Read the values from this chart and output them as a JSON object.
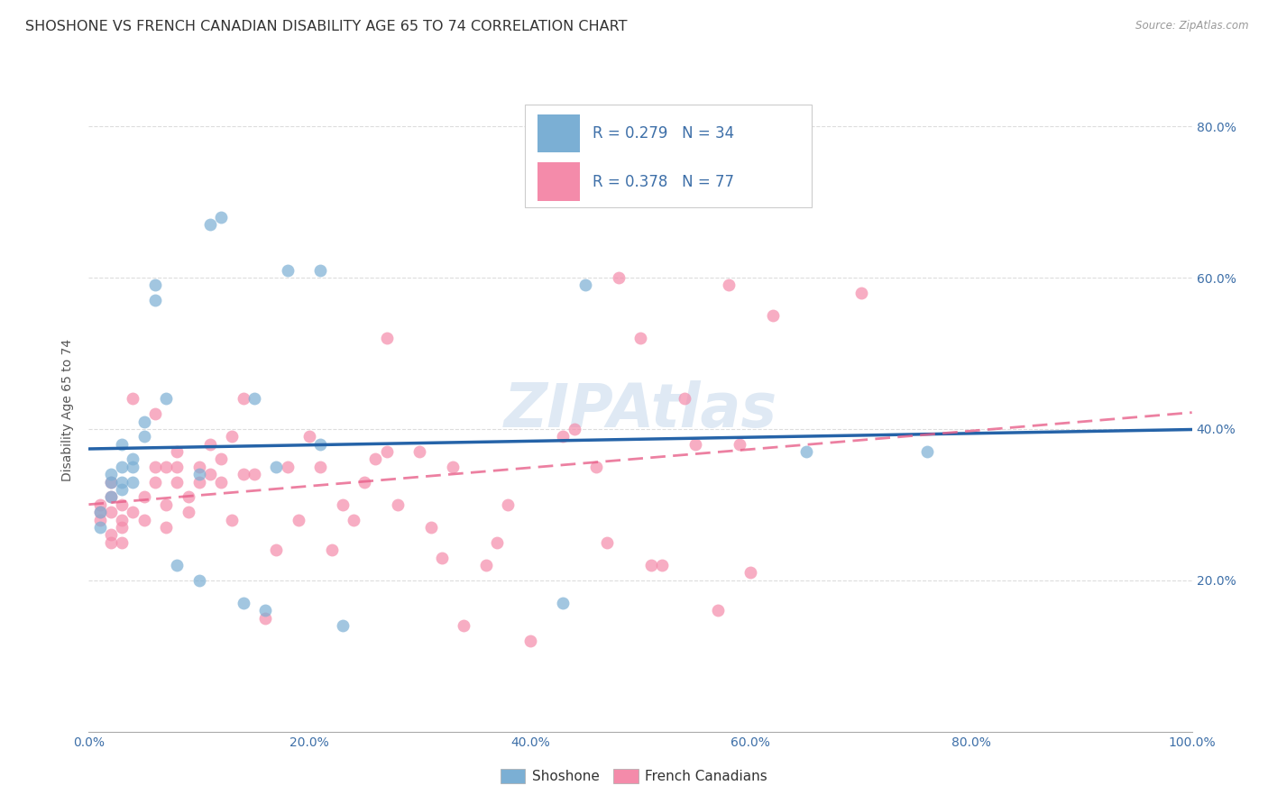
{
  "title": "SHOSHONE VS FRENCH CANADIAN DISABILITY AGE 65 TO 74 CORRELATION CHART",
  "source": "Source: ZipAtlas.com",
  "ylabel": "Disability Age 65 to 74",
  "xlabel": "",
  "watermark": "ZIPAtlas",
  "xlim": [
    0.0,
    1.0
  ],
  "ylim": [
    0.0,
    0.85
  ],
  "xticks": [
    0.0,
    0.2,
    0.4,
    0.6,
    0.8,
    1.0
  ],
  "yticks": [
    0.2,
    0.4,
    0.6,
    0.8
  ],
  "xtick_labels": [
    "0.0%",
    "20.0%",
    "40.0%",
    "60.0%",
    "80.0%",
    "100.0%"
  ],
  "right_ytick_labels": [
    "20.0%",
    "40.0%",
    "60.0%",
    "80.0%"
  ],
  "right_yticks": [
    0.2,
    0.4,
    0.6,
    0.8
  ],
  "shoshone_color": "#7bafd4",
  "french_color": "#f48baa",
  "shoshone_line_color": "#2563a8",
  "french_line_color": "#e8608a",
  "legend_R1": "0.279",
  "legend_N1": "34",
  "legend_R2": "0.378",
  "legend_N2": "77",
  "shoshone_x": [
    0.01,
    0.01,
    0.02,
    0.02,
    0.02,
    0.03,
    0.03,
    0.03,
    0.03,
    0.04,
    0.04,
    0.04,
    0.05,
    0.05,
    0.06,
    0.06,
    0.07,
    0.08,
    0.1,
    0.1,
    0.11,
    0.12,
    0.14,
    0.15,
    0.16,
    0.17,
    0.18,
    0.21,
    0.21,
    0.23,
    0.43,
    0.45,
    0.65,
    0.76
  ],
  "shoshone_y": [
    0.27,
    0.29,
    0.31,
    0.33,
    0.34,
    0.32,
    0.33,
    0.35,
    0.38,
    0.33,
    0.35,
    0.36,
    0.39,
    0.41,
    0.57,
    0.59,
    0.44,
    0.22,
    0.2,
    0.34,
    0.67,
    0.68,
    0.17,
    0.44,
    0.16,
    0.35,
    0.61,
    0.61,
    0.38,
    0.14,
    0.17,
    0.59,
    0.37,
    0.37
  ],
  "french_x": [
    0.01,
    0.01,
    0.01,
    0.02,
    0.02,
    0.02,
    0.02,
    0.02,
    0.03,
    0.03,
    0.03,
    0.03,
    0.04,
    0.04,
    0.05,
    0.05,
    0.06,
    0.06,
    0.06,
    0.07,
    0.07,
    0.07,
    0.08,
    0.08,
    0.08,
    0.09,
    0.09,
    0.1,
    0.1,
    0.11,
    0.11,
    0.12,
    0.12,
    0.13,
    0.13,
    0.14,
    0.14,
    0.15,
    0.16,
    0.17,
    0.18,
    0.19,
    0.2,
    0.21,
    0.22,
    0.23,
    0.24,
    0.25,
    0.26,
    0.27,
    0.27,
    0.28,
    0.3,
    0.31,
    0.32,
    0.33,
    0.34,
    0.36,
    0.37,
    0.38,
    0.4,
    0.43,
    0.44,
    0.46,
    0.47,
    0.48,
    0.5,
    0.51,
    0.52,
    0.54,
    0.55,
    0.57,
    0.58,
    0.59,
    0.6,
    0.62,
    0.7
  ],
  "french_y": [
    0.28,
    0.29,
    0.3,
    0.25,
    0.26,
    0.29,
    0.31,
    0.33,
    0.25,
    0.27,
    0.28,
    0.3,
    0.29,
    0.44,
    0.28,
    0.31,
    0.33,
    0.35,
    0.42,
    0.27,
    0.3,
    0.35,
    0.33,
    0.35,
    0.37,
    0.29,
    0.31,
    0.33,
    0.35,
    0.34,
    0.38,
    0.33,
    0.36,
    0.28,
    0.39,
    0.34,
    0.44,
    0.34,
    0.15,
    0.24,
    0.35,
    0.28,
    0.39,
    0.35,
    0.24,
    0.3,
    0.28,
    0.33,
    0.36,
    0.37,
    0.52,
    0.3,
    0.37,
    0.27,
    0.23,
    0.35,
    0.14,
    0.22,
    0.25,
    0.3,
    0.12,
    0.39,
    0.4,
    0.35,
    0.25,
    0.6,
    0.52,
    0.22,
    0.22,
    0.44,
    0.38,
    0.16,
    0.59,
    0.38,
    0.21,
    0.55,
    0.58
  ],
  "background_color": "#ffffff",
  "grid_color": "#dddddd",
  "title_fontsize": 11.5,
  "axis_label_fontsize": 10,
  "tick_fontsize": 10,
  "legend_fontsize": 12,
  "watermark_fontsize": 48,
  "watermark_color": "#b8cfe8",
  "watermark_alpha": 0.45
}
